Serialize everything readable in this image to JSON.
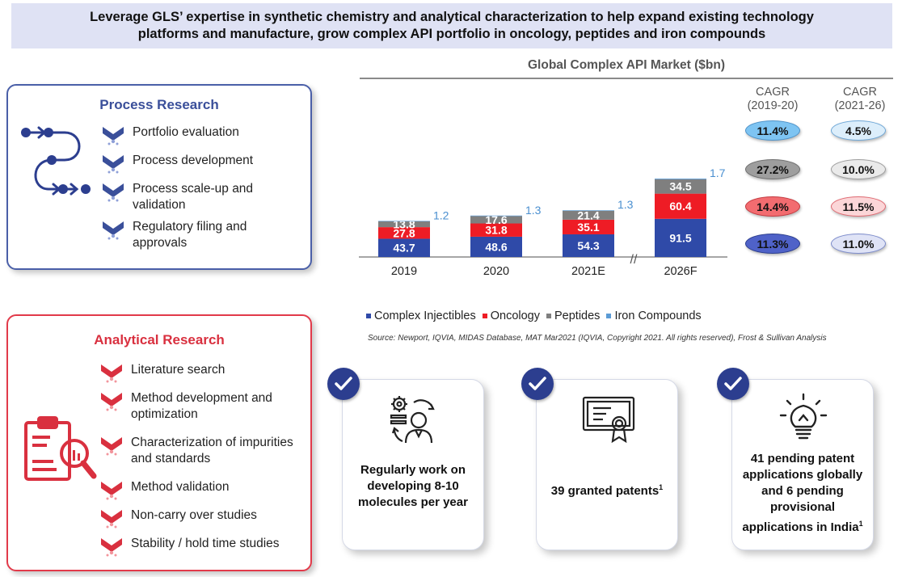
{
  "banner": {
    "line1": "Leverage GLS’ expertise in synthetic chemistry and analytical characterization to help expand existing technology",
    "line2": "platforms and manufacture, grow complex API portfolio in oncology, peptides and iron compounds"
  },
  "process_research": {
    "title": "Process Research",
    "items": [
      "Portfolio evaluation",
      "Process development",
      "Process scale-up and validation",
      "Regulatory filing and approvals"
    ]
  },
  "analytical_research": {
    "title": "Analytical Research",
    "items": [
      "Literature search",
      "Method development and optimization",
      "Characterization of impurities and standards",
      "Method validation",
      "Non-carry over studies",
      "Stability / hold time studies"
    ]
  },
  "chart_data": {
    "type": "bar",
    "stacked": true,
    "title": "Global Complex API Market ($bn)",
    "categories": [
      "2019",
      "2020",
      "2021E",
      "2026F"
    ],
    "axis_break": "//",
    "series": [
      {
        "name": "Complex Injectibles",
        "values": [
          43.7,
          48.6,
          54.3,
          91.5
        ],
        "color": "#2f4aa8"
      },
      {
        "name": "Oncology",
        "values": [
          27.8,
          31.8,
          35.1,
          60.4
        ],
        "color": "#ee1c25"
      },
      {
        "name": "Peptides",
        "values": [
          13.8,
          17.6,
          21.4,
          34.5
        ],
        "color": "#7f7f7f"
      },
      {
        "name": "Iron Compounds",
        "values": [
          1.2,
          1.3,
          1.3,
          1.7
        ],
        "color": "#5b9bd5"
      }
    ],
    "value_labels": {
      "Complex Injectibles": [
        "43.7",
        "48.6",
        "54.3",
        "91.5"
      ],
      "Oncology": [
        "27.8",
        "31.8",
        "35.1",
        "60.4"
      ],
      "Peptides": [
        "13.8",
        "17.6",
        "21.4",
        "34.5"
      ],
      "Iron Compounds": [
        "1.2",
        "1.3",
        "1.3",
        "1.7"
      ]
    },
    "legend_position": "bottom"
  },
  "cagr": {
    "col1_header_line1": "CAGR",
    "col1_header_line2": "(2019-20)",
    "col2_header_line1": "CAGR",
    "col2_header_line2": "(2021-26)",
    "col1": [
      "11.4%",
      "27.2%",
      "14.4%",
      "11.3%"
    ],
    "col2": [
      "4.5%",
      "10.0%",
      "11.5%",
      "11.0%"
    ],
    "col1_colors": [
      "#7ec4f2",
      "#9e9e9e",
      "#f26c70",
      "#4f62c8"
    ],
    "col2_colors": [
      "#dceefb",
      "#eaeaea",
      "#fbd6d8",
      "#dfe3f6"
    ]
  },
  "source": "Source: Newport, IQVIA, MIDAS Database, MAT Mar2021 (IQVIA, Copyright 2021. All rights reserved), Frost & Sullivan Analysis",
  "cards": [
    {
      "text": "Regularly work on developing 8-10 molecules per year",
      "icon": "scientist-gear-icon"
    },
    {
      "text": "39 granted patents",
      "sup": "1",
      "icon": "certificate-icon"
    },
    {
      "text": "41 pending patent applications globally and 6 pending provisional applications in India",
      "sup": "1",
      "icon": "lightbulb-icon"
    }
  ]
}
